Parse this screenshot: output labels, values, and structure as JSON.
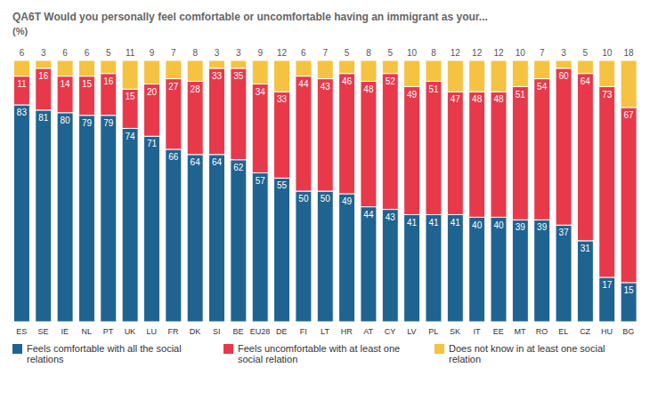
{
  "chart_data": {
    "type": "bar",
    "title": "QA6T Would you personally feel comfortable or uncomfortable having an immigrant as your...",
    "subtitle": "(%)",
    "categories": [
      "ES",
      "SE",
      "IE",
      "NL",
      "PT",
      "UK",
      "LU",
      "FR",
      "DK",
      "SI",
      "BE",
      "EU28",
      "DE",
      "FI",
      "LT",
      "HR",
      "AT",
      "CY",
      "LV",
      "PL",
      "SK",
      "IT",
      "EE",
      "MT",
      "RO",
      "EL",
      "CZ",
      "HU",
      "BG"
    ],
    "series": [
      {
        "name": "Feels comfortable with all the social relations",
        "color": "#1f6391",
        "values": [
          83,
          81,
          80,
          79,
          79,
          74,
          71,
          66,
          64,
          64,
          62,
          57,
          55,
          50,
          50,
          49,
          44,
          43,
          41,
          41,
          41,
          40,
          40,
          39,
          39,
          37,
          31,
          17,
          15
        ]
      },
      {
        "name": "Feels uncomfortable with at least one social relation",
        "color": "#e8394a",
        "values": [
          11,
          16,
          14,
          15,
          16,
          15,
          20,
          27,
          28,
          33,
          35,
          34,
          33,
          44,
          43,
          46,
          48,
          52,
          49,
          51,
          47,
          48,
          48,
          51,
          54,
          60,
          64,
          73,
          67
        ]
      },
      {
        "name": "Does not know in at least one social relation",
        "color": "#f5c242",
        "values": [
          6,
          3,
          6,
          6,
          5,
          11,
          9,
          7,
          8,
          3,
          3,
          9,
          12,
          6,
          7,
          5,
          8,
          5,
          10,
          8,
          12,
          12,
          12,
          10,
          7,
          3,
          5,
          10,
          18
        ]
      }
    ],
    "ylim": [
      0,
      100
    ],
    "stacked": true,
    "data_labels": true,
    "tick_labels": "x",
    "legend": "bottom"
  }
}
